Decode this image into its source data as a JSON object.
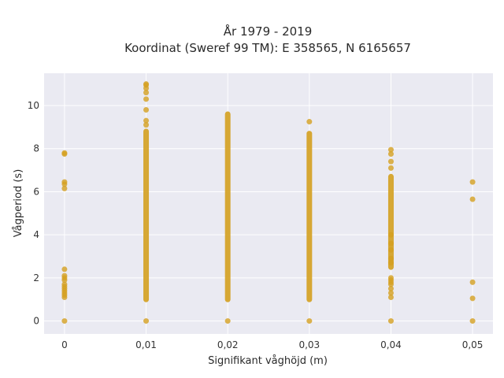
{
  "chart_data": {
    "type": "scatter",
    "title_lines": [
      "År 1979 - 2019",
      "Koordinat (Sweref 99 TM): E 358565, N 6165657"
    ],
    "xlabel": "Signifikant våghöjd (m)",
    "ylabel": "Vågperiod (s)",
    "xlim": [
      -0.0025,
      0.0525
    ],
    "ylim": [
      -0.6,
      11.5
    ],
    "x_ticks": [
      0,
      0.01,
      0.02,
      0.03,
      0.04,
      0.05
    ],
    "x_tick_labels": [
      "0",
      "0,01",
      "0,02",
      "0,03",
      "0,04",
      "0,05"
    ],
    "y_ticks": [
      0,
      2,
      4,
      6,
      8,
      10
    ],
    "y_tick_labels": [
      "0",
      "2",
      "4",
      "6",
      "8",
      "10"
    ],
    "grid": true,
    "marker_color": "#d4a020",
    "background_color": "#eaeaf2",
    "grid_color": "#ffffff",
    "series": [
      {
        "x": 0,
        "values": [
          0,
          1.1,
          1.2,
          1.3,
          1.4,
          1.5,
          1.6,
          1.7,
          1.9,
          2.0,
          2.1,
          2.4,
          6.15,
          6.35,
          6.45,
          7.75,
          7.8
        ]
      },
      {
        "x": 0.01,
        "range": [
          1.0,
          8.8
        ],
        "values": [
          0,
          9.1,
          9.3,
          9.8,
          10.3,
          10.6,
          10.8,
          10.95,
          11.0
        ]
      },
      {
        "x": 0.02,
        "range": [
          1.0,
          9.6
        ],
        "values": [
          0
        ]
      },
      {
        "x": 0.03,
        "range": [
          1.0,
          8.7
        ],
        "values": [
          0,
          9.25
        ]
      },
      {
        "x": 0.04,
        "range": [
          2.5,
          6.7
        ],
        "values": [
          0,
          1.1,
          1.3,
          1.5,
          1.7,
          1.8,
          1.9,
          2.0,
          2.7,
          2.9,
          3.3,
          3.6,
          4.0,
          7.1,
          7.4,
          7.75,
          7.95
        ]
      },
      {
        "x": 0.05,
        "values": [
          0,
          1.05,
          1.8,
          5.65,
          6.45
        ]
      }
    ]
  }
}
